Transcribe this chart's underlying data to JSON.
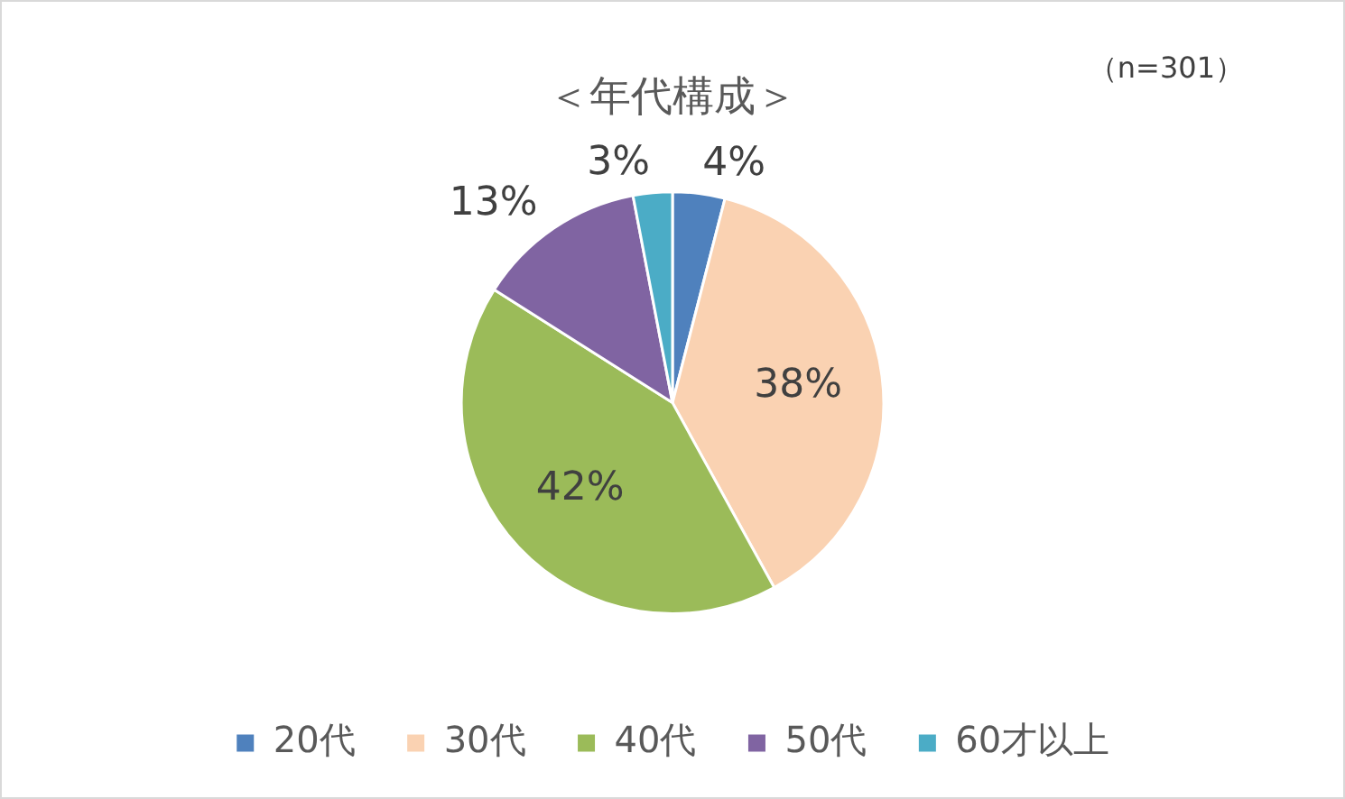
{
  "chart_data": {
    "type": "pie",
    "title": "＜年代構成＞",
    "annotations": [
      "（n=301）"
    ],
    "categories": [
      "20代",
      "30代",
      "40代",
      "50代",
      "60才以上"
    ],
    "values": [
      4,
      38,
      42,
      13,
      3
    ],
    "colors": [
      "#4f81bd",
      "#fad2b2",
      "#9bbb59",
      "#8064a2",
      "#4bacc6"
    ],
    "value_labels": [
      "4%",
      "38%",
      "42%",
      "13%",
      "3%"
    ],
    "legend": "bottom"
  }
}
